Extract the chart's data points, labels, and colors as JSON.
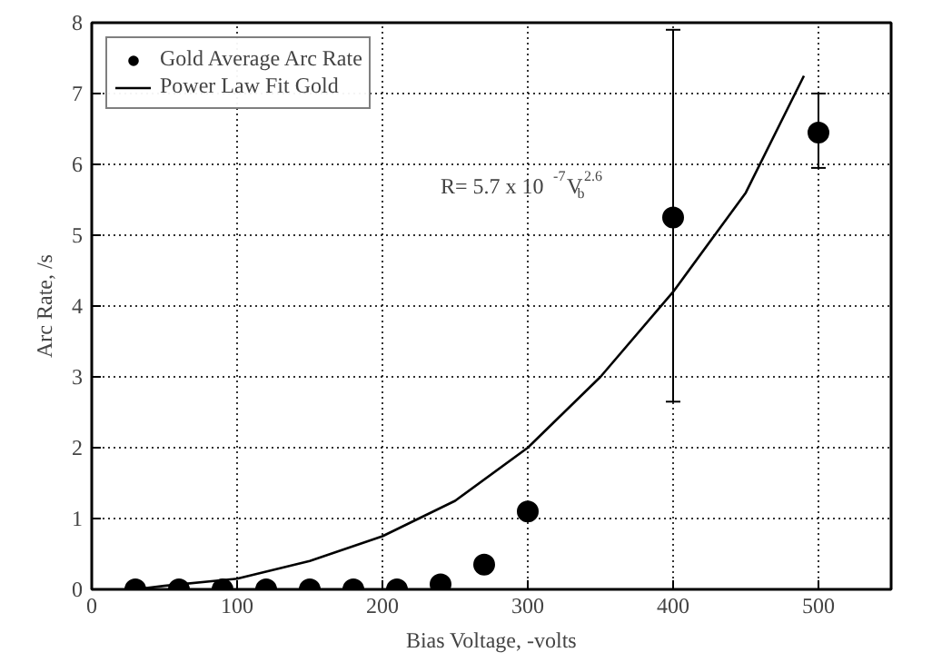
{
  "chart_data": {
    "type": "scatter",
    "xlabel": "Bias Voltage, -volts",
    "ylabel": "Arc Rate, /s",
    "xlim": [
      0,
      550
    ],
    "ylim": [
      0,
      8
    ],
    "xticks": [
      0,
      100,
      200,
      300,
      400,
      500
    ],
    "yticks": [
      0,
      1,
      2,
      3,
      4,
      5,
      6,
      7,
      8
    ],
    "grid": true,
    "legend": "top left",
    "series": [
      {
        "name": "Gold Average Arc Rate",
        "marker": "circle",
        "color": "#000000",
        "x": [
          30,
          60,
          90,
          120,
          150,
          180,
          210,
          240,
          270,
          300,
          400,
          500
        ],
        "values": [
          0,
          0,
          0,
          0,
          0,
          0,
          0,
          0.07,
          0.35,
          1.1,
          5.25,
          6.45
        ],
        "errors": [
          null,
          null,
          null,
          null,
          null,
          null,
          null,
          null,
          null,
          null,
          [
            2.65,
            7.9
          ],
          [
            5.95,
            7.0
          ]
        ]
      },
      {
        "name": "Power Law Fit Gold",
        "type": "line",
        "color": "#000000",
        "line_style": "solid",
        "x": [
          30,
          50,
          100,
          150,
          200,
          250,
          300,
          350,
          400,
          450,
          490
        ],
        "values": [
          0,
          0.05,
          0.15,
          0.4,
          0.75,
          1.25,
          2.0,
          3.0,
          4.2,
          5.6,
          7.25
        ]
      }
    ],
    "annotations": [
      "R= 5.7 x 10$^{-7}$V$_{b}$$^{2.6}$"
    ]
  }
}
